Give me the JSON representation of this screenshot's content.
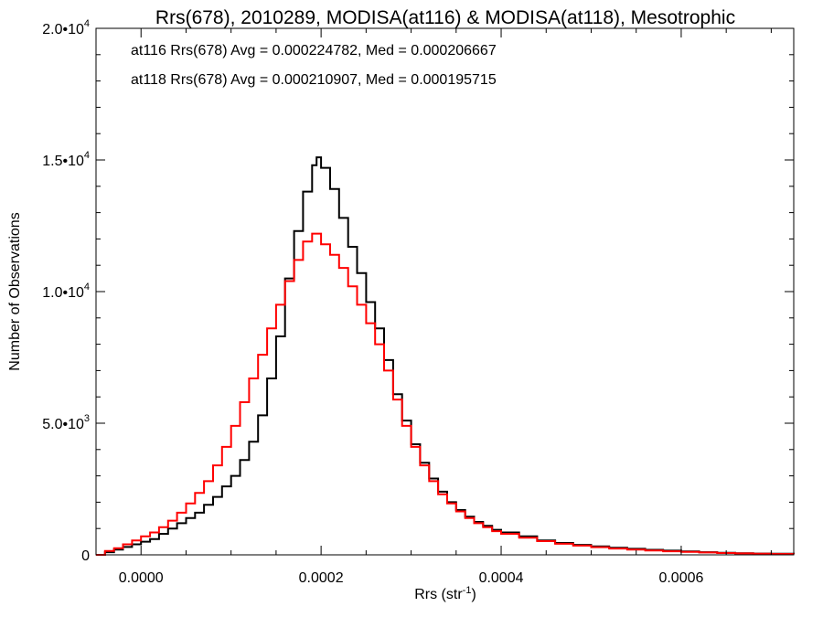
{
  "chart_data": {
    "type": "histogram",
    "title": "Rrs(678), 2010289, MODISA(at116) & MODISA(at118), Mesotrophic",
    "xlabel": "Rrs (str",
    "xlabel_sup": "-1",
    "xlabel_end": ")",
    "ylabel": "Number of Observations",
    "xlim": [
      -5e-05,
      0.000725
    ],
    "ylim": [
      0,
      20000
    ],
    "grid": false,
    "x_ticks": [
      {
        "value": 0.0,
        "label": "0.0000"
      },
      {
        "value": 0.0002,
        "label": "0.0002"
      },
      {
        "value": 0.0004,
        "label": "0.0004"
      },
      {
        "value": 0.0006,
        "label": "0.0006"
      }
    ],
    "y_ticks": [
      {
        "value": 0,
        "mant": "0",
        "exp": ""
      },
      {
        "value": 5000,
        "mant": "5.0•10",
        "exp": "3"
      },
      {
        "value": 10000,
        "mant": "1.0•10",
        "exp": "4"
      },
      {
        "value": 15000,
        "mant": "1.5•10",
        "exp": "4"
      },
      {
        "value": 20000,
        "mant": "2.0•10",
        "exp": "4"
      }
    ],
    "annotations": [
      {
        "text": "at116 Rrs(678) Avg = 0.000224782, Med = 0.000206667",
        "color": "#000000"
      },
      {
        "text": "at118 Rrs(678) Avg = 0.000210907, Med = 0.000195715",
        "color": "#ff0000"
      }
    ],
    "series": [
      {
        "color": "#000000",
        "points": [
          [
            -5e-05,
            0
          ],
          [
            -4e-05,
            100
          ],
          [
            -3e-05,
            200
          ],
          [
            -2e-05,
            300
          ],
          [
            -1e-05,
            400
          ],
          [
            0.0,
            500
          ],
          [
            1e-05,
            600
          ],
          [
            2e-05,
            800
          ],
          [
            3e-05,
            1000
          ],
          [
            4e-05,
            1200
          ],
          [
            5e-05,
            1400
          ],
          [
            6e-05,
            1600
          ],
          [
            7e-05,
            1900
          ],
          [
            8e-05,
            2200
          ],
          [
            9e-05,
            2600
          ],
          [
            0.0001,
            3000
          ],
          [
            0.00011,
            3600
          ],
          [
            0.00012,
            4300
          ],
          [
            0.00013,
            5300
          ],
          [
            0.00014,
            6700
          ],
          [
            0.00015,
            8300
          ],
          [
            0.00016,
            10500
          ],
          [
            0.00017,
            12300
          ],
          [
            0.00018,
            13800
          ],
          [
            0.00019,
            14800
          ],
          [
            0.000195,
            15100
          ],
          [
            0.0002,
            14700
          ],
          [
            0.00021,
            13900
          ],
          [
            0.00022,
            12800
          ],
          [
            0.00023,
            11700
          ],
          [
            0.00024,
            10700
          ],
          [
            0.00025,
            9600
          ],
          [
            0.00026,
            8600
          ],
          [
            0.00027,
            7400
          ],
          [
            0.00028,
            6100
          ],
          [
            0.00029,
            5100
          ],
          [
            0.0003,
            4200
          ],
          [
            0.00031,
            3500
          ],
          [
            0.00032,
            2900
          ],
          [
            0.00033,
            2400
          ],
          [
            0.00034,
            2000
          ],
          [
            0.00035,
            1700
          ],
          [
            0.00036,
            1450
          ],
          [
            0.00037,
            1250
          ],
          [
            0.00038,
            1100
          ],
          [
            0.00039,
            950
          ],
          [
            0.0004,
            850
          ],
          [
            0.00042,
            700
          ],
          [
            0.00044,
            550
          ],
          [
            0.00046,
            450
          ],
          [
            0.00048,
            380
          ],
          [
            0.0005,
            320
          ],
          [
            0.00052,
            270
          ],
          [
            0.00054,
            230
          ],
          [
            0.00056,
            190
          ],
          [
            0.00058,
            160
          ],
          [
            0.0006,
            130
          ],
          [
            0.00062,
            100
          ],
          [
            0.00064,
            80
          ],
          [
            0.00066,
            60
          ],
          [
            0.00068,
            50
          ],
          [
            0.0007,
            40
          ],
          [
            0.000725,
            30
          ]
        ]
      },
      {
        "color": "#ff0000",
        "points": [
          [
            -5e-05,
            0
          ],
          [
            -4e-05,
            150
          ],
          [
            -3e-05,
            250
          ],
          [
            -2e-05,
            400
          ],
          [
            -1e-05,
            550
          ],
          [
            0.0,
            700
          ],
          [
            1e-05,
            850
          ],
          [
            2e-05,
            1050
          ],
          [
            3e-05,
            1300
          ],
          [
            4e-05,
            1600
          ],
          [
            5e-05,
            1950
          ],
          [
            6e-05,
            2350
          ],
          [
            7e-05,
            2800
          ],
          [
            8e-05,
            3400
          ],
          [
            9e-05,
            4100
          ],
          [
            0.0001,
            4900
          ],
          [
            0.00011,
            5800
          ],
          [
            0.00012,
            6700
          ],
          [
            0.00013,
            7600
          ],
          [
            0.00014,
            8600
          ],
          [
            0.00015,
            9500
          ],
          [
            0.00016,
            10400
          ],
          [
            0.00017,
            11200
          ],
          [
            0.00018,
            11900
          ],
          [
            0.00019,
            12200
          ],
          [
            0.0002,
            11800
          ],
          [
            0.00021,
            11400
          ],
          [
            0.00022,
            10900
          ],
          [
            0.00023,
            10200
          ],
          [
            0.00024,
            9500
          ],
          [
            0.00025,
            8800
          ],
          [
            0.00026,
            8000
          ],
          [
            0.00027,
            7000
          ],
          [
            0.00028,
            5900
          ],
          [
            0.00029,
            4900
          ],
          [
            0.0003,
            4100
          ],
          [
            0.00031,
            3400
          ],
          [
            0.00032,
            2800
          ],
          [
            0.00033,
            2300
          ],
          [
            0.00034,
            1950
          ],
          [
            0.00035,
            1650
          ],
          [
            0.00036,
            1400
          ],
          [
            0.00037,
            1200
          ],
          [
            0.00038,
            1050
          ],
          [
            0.00039,
            900
          ],
          [
            0.0004,
            800
          ],
          [
            0.00042,
            650
          ],
          [
            0.00044,
            520
          ],
          [
            0.00046,
            420
          ],
          [
            0.00048,
            350
          ],
          [
            0.0005,
            290
          ],
          [
            0.00052,
            240
          ],
          [
            0.00054,
            200
          ],
          [
            0.00056,
            165
          ],
          [
            0.00058,
            135
          ],
          [
            0.0006,
            110
          ],
          [
            0.00062,
            90
          ],
          [
            0.00064,
            70
          ],
          [
            0.00066,
            55
          ],
          [
            0.00068,
            45
          ],
          [
            0.0007,
            35
          ],
          [
            0.000725,
            25
          ]
        ]
      }
    ]
  }
}
